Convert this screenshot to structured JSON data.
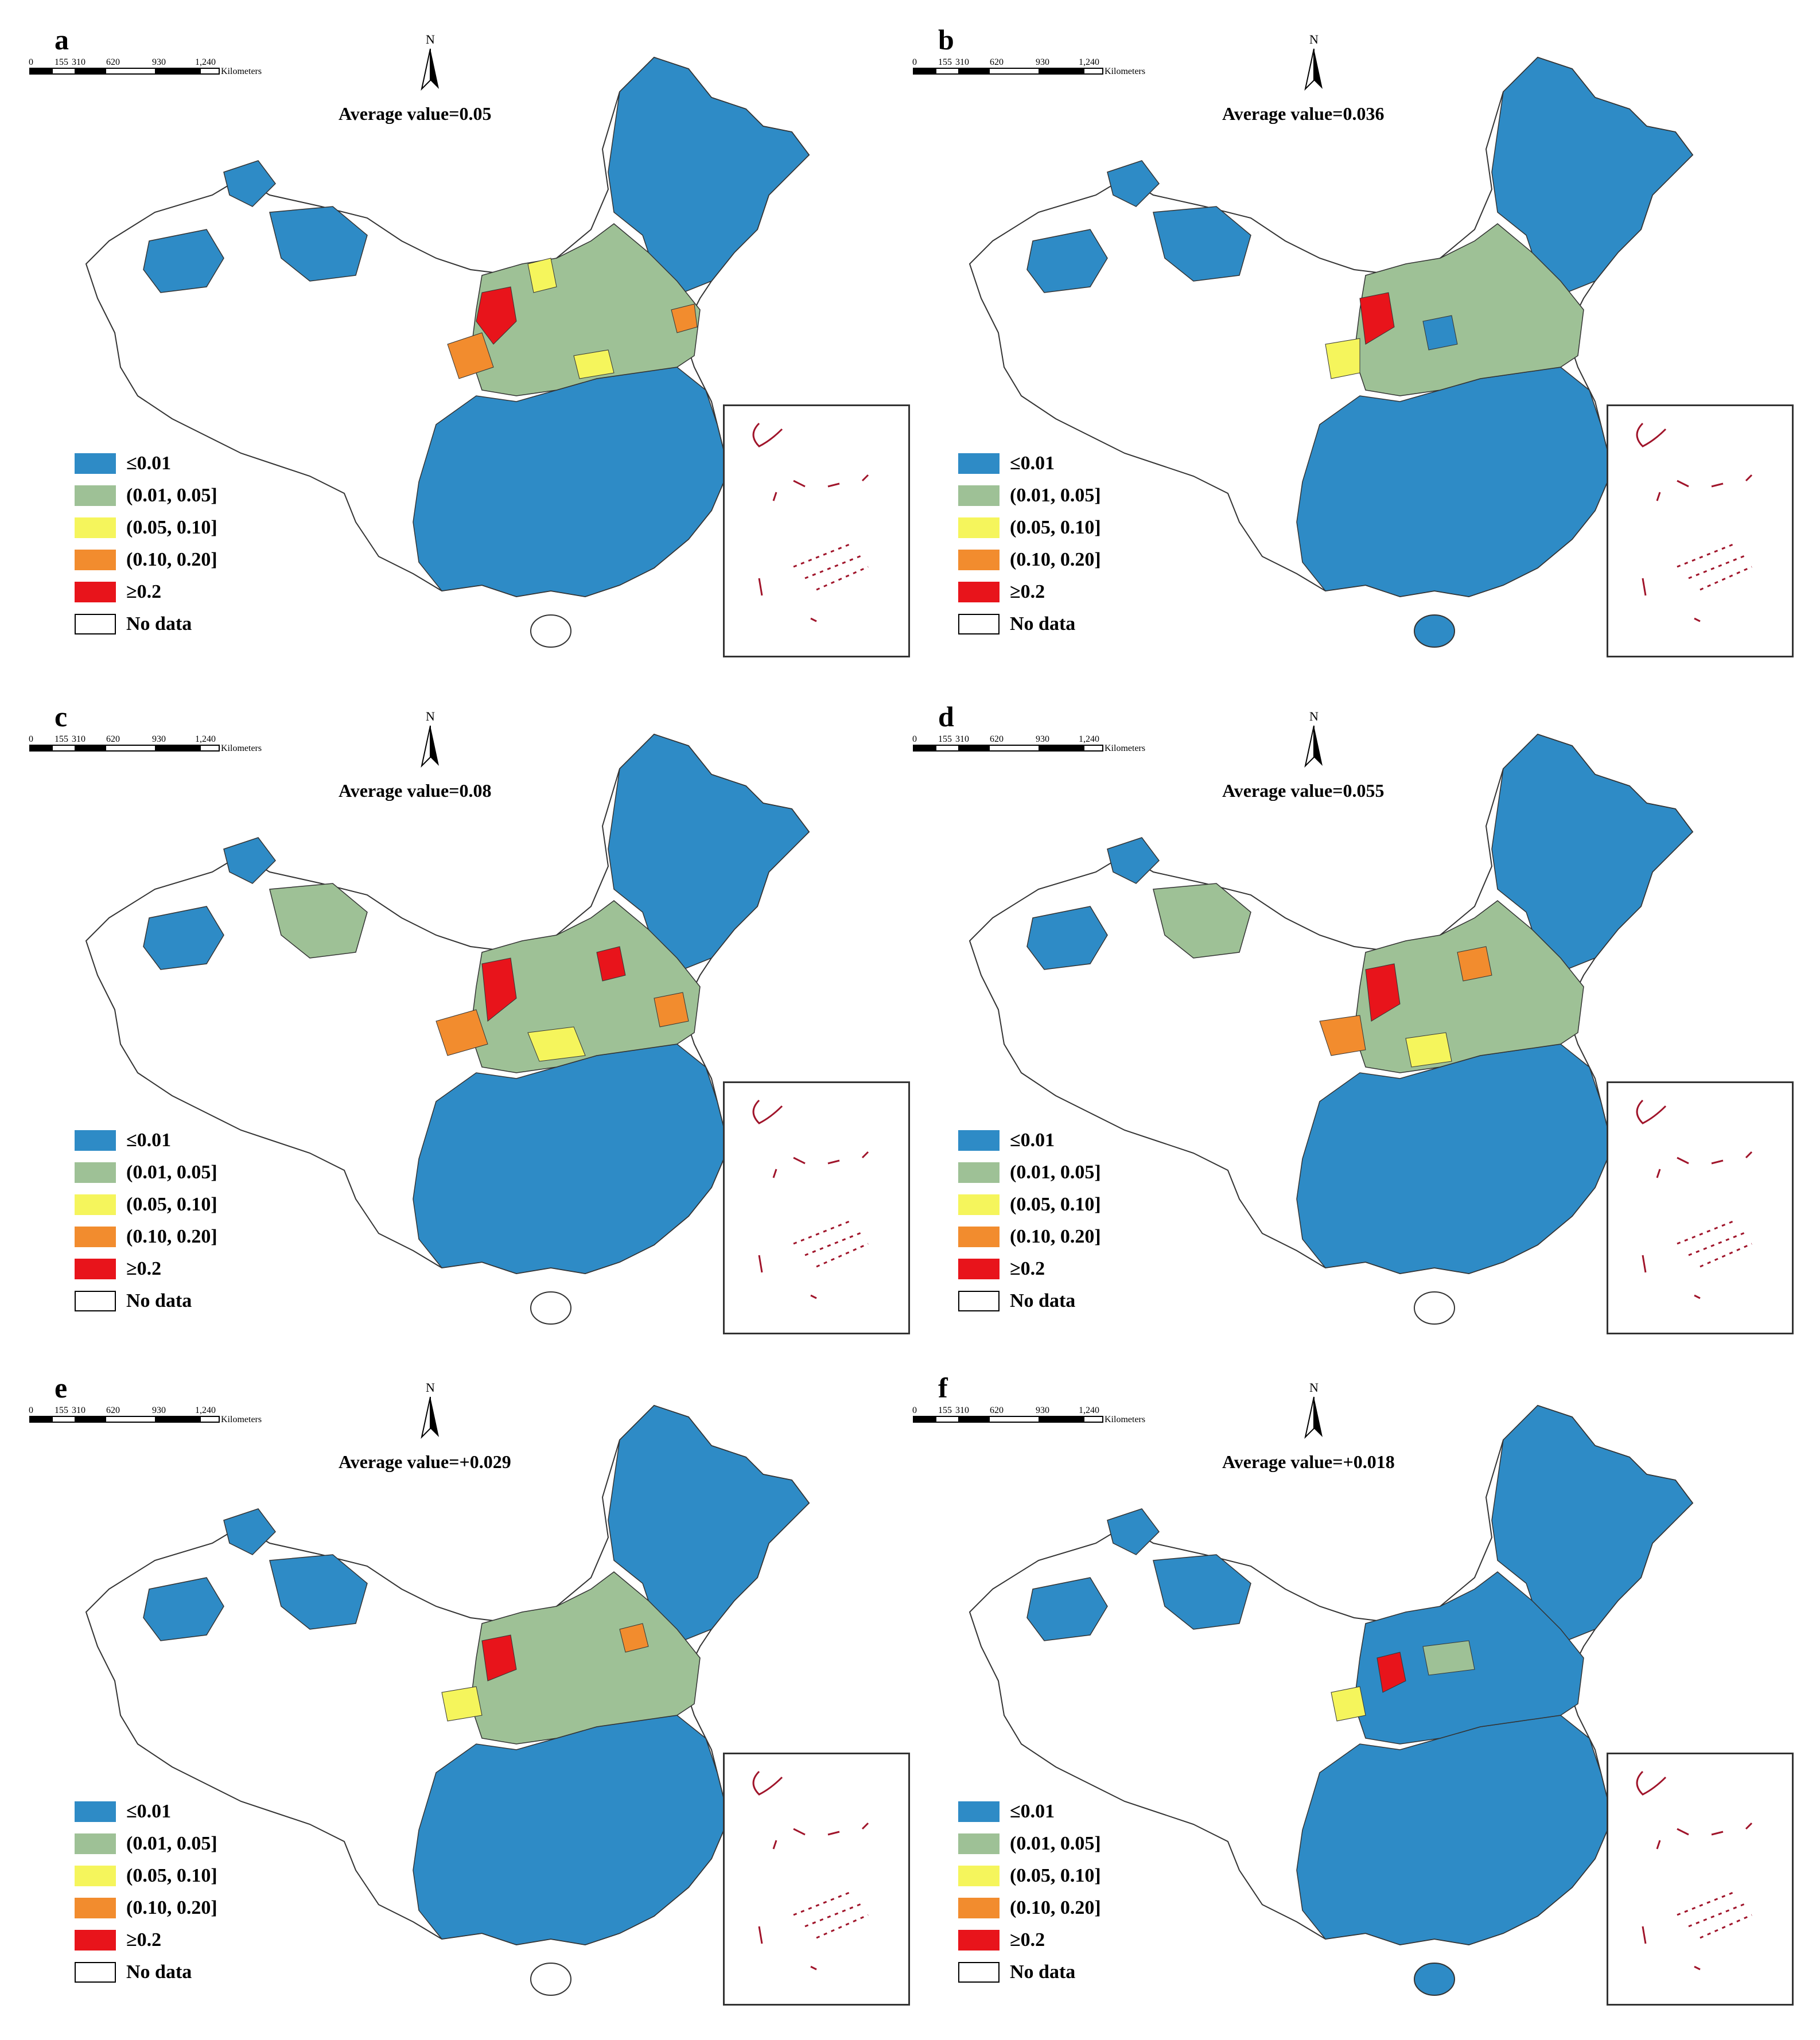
{
  "legend": {
    "items": [
      {
        "label": "≤0.01",
        "color": "#2e8bc6"
      },
      {
        "label": "(0.01, 0.05]",
        "color": "#9ec196"
      },
      {
        "label": "(0.05, 0.10]",
        "color": "#f5f55c"
      },
      {
        "label": "(0.10, 0.20]",
        "color": "#f28c2e"
      },
      {
        "label": "≥0.2",
        "color": "#e8141b"
      },
      {
        "label": "No data",
        "color": "#ffffff"
      }
    ]
  },
  "scale_bar": {
    "ticks": [
      "0",
      "155",
      "310",
      "620",
      "930",
      "1,240"
    ],
    "unit": "Kilometers"
  },
  "north_label": "N",
  "panels": [
    {
      "letter": "a",
      "average": "Average value=0.05"
    },
    {
      "letter": "b",
      "average": "Average value=0.036"
    },
    {
      "letter": "c",
      "average": "Average value=0.08"
    },
    {
      "letter": "d",
      "average": "Average value=0.055"
    },
    {
      "letter": "e",
      "average": "Average value=+0.029"
    },
    {
      "letter": "f",
      "average": "Average value=+0.018"
    }
  ]
}
